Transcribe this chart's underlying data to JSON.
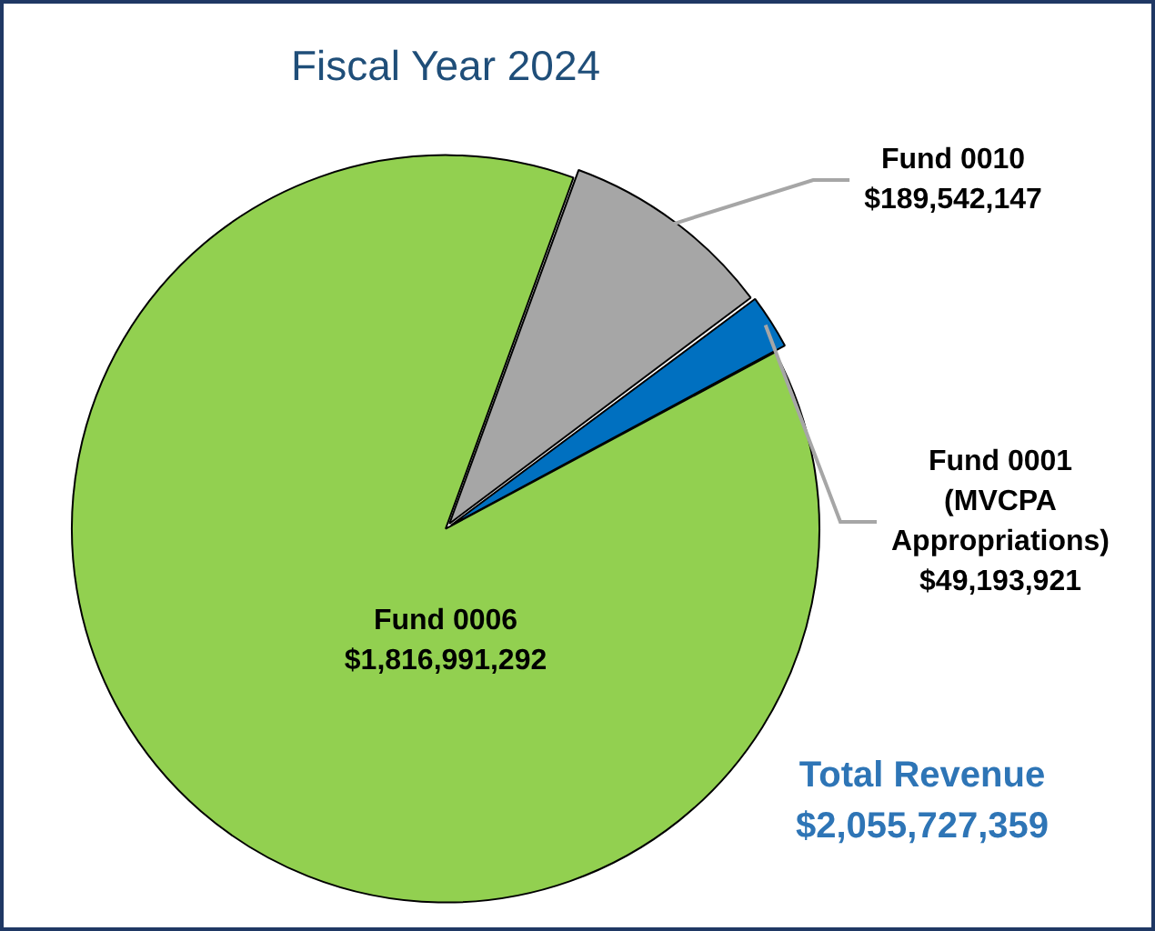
{
  "chart_data": {
    "type": "pie",
    "title": "Fiscal Year 2024",
    "categories": [
      "Fund 0010",
      "Fund 0001 (MVCPA Appropriations)",
      "Fund 0006"
    ],
    "values": [
      189542147,
      49193921,
      1816991292
    ],
    "colors": [
      "#a6a6a6",
      "#0070c0",
      "#92d050"
    ],
    "value_labels": [
      "$189,542,147",
      "$49,193,921",
      "$1,816,991,292"
    ],
    "annotations": [
      "Total Revenue",
      "$2,055,727,359"
    ],
    "legend": false
  }
}
